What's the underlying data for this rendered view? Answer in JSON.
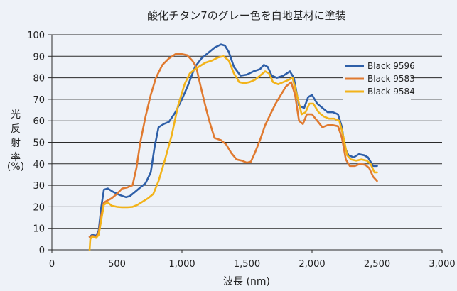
{
  "chart_data": {
    "type": "line",
    "title": "酸化チタン7のグレー色を白地基材に塗装",
    "xlabel": "波長 (nm)",
    "ylabel_chars": [
      "光",
      "反",
      "射",
      "率"
    ],
    "ylabel_unit": "(%)",
    "xlim": [
      0,
      3000
    ],
    "ylim": [
      0,
      100
    ],
    "x_ticks": [
      0,
      500,
      1000,
      1500,
      2000,
      2500,
      3000
    ],
    "x_tick_labels": [
      "0",
      "500",
      "1,000",
      "1,500",
      "2,000",
      "2,500",
      "3,000"
    ],
    "y_ticks": [
      0,
      10,
      20,
      30,
      40,
      50,
      60,
      70,
      80,
      90,
      100
    ],
    "y_tick_labels": [
      "0",
      "10",
      "20",
      "30",
      "40",
      "50",
      "60",
      "70",
      "80",
      "90",
      "100"
    ],
    "grid": "horizontal",
    "legend_position": "right",
    "series": [
      {
        "name": "Black 9596",
        "color": "#2e5fa8",
        "points": [
          [
            290,
            6
          ],
          [
            310,
            7
          ],
          [
            340,
            6.5
          ],
          [
            360,
            9
          ],
          [
            380,
            20
          ],
          [
            400,
            28
          ],
          [
            430,
            28.5
          ],
          [
            470,
            27
          ],
          [
            520,
            25.5
          ],
          [
            570,
            24.5
          ],
          [
            600,
            25
          ],
          [
            640,
            27
          ],
          [
            680,
            29
          ],
          [
            720,
            31
          ],
          [
            760,
            36
          ],
          [
            790,
            48
          ],
          [
            820,
            57
          ],
          [
            860,
            58.5
          ],
          [
            900,
            59.5
          ],
          [
            950,
            64
          ],
          [
            1000,
            70
          ],
          [
            1050,
            77
          ],
          [
            1100,
            85
          ],
          [
            1150,
            89
          ],
          [
            1200,
            91.5
          ],
          [
            1250,
            94
          ],
          [
            1300,
            95.5
          ],
          [
            1330,
            95
          ],
          [
            1360,
            92
          ],
          [
            1400,
            85
          ],
          [
            1450,
            81
          ],
          [
            1500,
            81.5
          ],
          [
            1550,
            83
          ],
          [
            1600,
            84
          ],
          [
            1630,
            86
          ],
          [
            1660,
            85
          ],
          [
            1690,
            81
          ],
          [
            1730,
            80
          ],
          [
            1780,
            81
          ],
          [
            1830,
            83
          ],
          [
            1860,
            80
          ],
          [
            1900,
            67
          ],
          [
            1940,
            66
          ],
          [
            1970,
            71
          ],
          [
            2000,
            72
          ],
          [
            2040,
            68
          ],
          [
            2080,
            66
          ],
          [
            2120,
            64
          ],
          [
            2160,
            64
          ],
          [
            2200,
            63
          ],
          [
            2230,
            57
          ],
          [
            2250,
            48
          ],
          [
            2280,
            44
          ],
          [
            2320,
            43
          ],
          [
            2360,
            44.5
          ],
          [
            2400,
            44
          ],
          [
            2430,
            43
          ],
          [
            2470,
            39
          ],
          [
            2500,
            39
          ]
        ]
      },
      {
        "name": "Black 9583",
        "color": "#e07a30",
        "points": [
          [
            290,
            6
          ],
          [
            310,
            6.5
          ],
          [
            340,
            6
          ],
          [
            360,
            8
          ],
          [
            380,
            16
          ],
          [
            400,
            22
          ],
          [
            430,
            23
          ],
          [
            460,
            24
          ],
          [
            500,
            26
          ],
          [
            540,
            28.5
          ],
          [
            580,
            29
          ],
          [
            620,
            30
          ],
          [
            650,
            38
          ],
          [
            680,
            50
          ],
          [
            720,
            62
          ],
          [
            760,
            72
          ],
          [
            800,
            80
          ],
          [
            850,
            86
          ],
          [
            900,
            89
          ],
          [
            950,
            91
          ],
          [
            1000,
            91
          ],
          [
            1040,
            90.5
          ],
          [
            1080,
            88
          ],
          [
            1110,
            85
          ],
          [
            1140,
            77
          ],
          [
            1180,
            67
          ],
          [
            1210,
            60
          ],
          [
            1250,
            52
          ],
          [
            1300,
            51
          ],
          [
            1340,
            49
          ],
          [
            1380,
            45
          ],
          [
            1420,
            42
          ],
          [
            1460,
            41.5
          ],
          [
            1500,
            40.5
          ],
          [
            1530,
            41
          ],
          [
            1560,
            45
          ],
          [
            1600,
            51
          ],
          [
            1640,
            58
          ],
          [
            1680,
            63
          ],
          [
            1720,
            68
          ],
          [
            1760,
            72
          ],
          [
            1800,
            76
          ],
          [
            1840,
            78
          ],
          [
            1870,
            72
          ],
          [
            1900,
            60
          ],
          [
            1930,
            58.5
          ],
          [
            1960,
            63
          ],
          [
            2000,
            63
          ],
          [
            2040,
            60
          ],
          [
            2080,
            57
          ],
          [
            2120,
            58
          ],
          [
            2160,
            58
          ],
          [
            2200,
            57.5
          ],
          [
            2230,
            52
          ],
          [
            2260,
            42
          ],
          [
            2290,
            39
          ],
          [
            2330,
            39
          ],
          [
            2370,
            40
          ],
          [
            2410,
            39.5
          ],
          [
            2440,
            38
          ],
          [
            2470,
            34
          ],
          [
            2500,
            32
          ]
        ]
      },
      {
        "name": "Black 9584",
        "color": "#f2b31a",
        "points": [
          [
            290,
            0
          ],
          [
            295,
            5
          ],
          [
            310,
            6
          ],
          [
            340,
            5.5
          ],
          [
            360,
            7
          ],
          [
            380,
            14
          ],
          [
            400,
            21
          ],
          [
            430,
            22
          ],
          [
            460,
            20.5
          ],
          [
            500,
            20
          ],
          [
            540,
            19.8
          ],
          [
            580,
            19.8
          ],
          [
            620,
            20
          ],
          [
            660,
            21
          ],
          [
            700,
            22.5
          ],
          [
            740,
            24
          ],
          [
            780,
            26
          ],
          [
            820,
            32
          ],
          [
            870,
            42
          ],
          [
            920,
            53
          ],
          [
            970,
            67
          ],
          [
            1020,
            77
          ],
          [
            1060,
            82
          ],
          [
            1100,
            84
          ],
          [
            1140,
            85.5
          ],
          [
            1180,
            87
          ],
          [
            1230,
            88
          ],
          [
            1280,
            89.5
          ],
          [
            1320,
            90
          ],
          [
            1360,
            88
          ],
          [
            1400,
            82
          ],
          [
            1440,
            78
          ],
          [
            1480,
            77.5
          ],
          [
            1520,
            78
          ],
          [
            1560,
            79
          ],
          [
            1600,
            81
          ],
          [
            1640,
            83
          ],
          [
            1670,
            82
          ],
          [
            1700,
            78
          ],
          [
            1740,
            77
          ],
          [
            1780,
            78
          ],
          [
            1820,
            79
          ],
          [
            1850,
            80
          ],
          [
            1880,
            73
          ],
          [
            1920,
            63
          ],
          [
            1950,
            64
          ],
          [
            1980,
            68
          ],
          [
            2010,
            68
          ],
          [
            2050,
            64
          ],
          [
            2090,
            62
          ],
          [
            2130,
            61
          ],
          [
            2170,
            61
          ],
          [
            2210,
            60
          ],
          [
            2240,
            53
          ],
          [
            2270,
            44
          ],
          [
            2300,
            42
          ],
          [
            2340,
            41.5
          ],
          [
            2380,
            42
          ],
          [
            2420,
            41.5
          ],
          [
            2450,
            40
          ],
          [
            2480,
            36
          ],
          [
            2500,
            36
          ]
        ]
      }
    ]
  }
}
